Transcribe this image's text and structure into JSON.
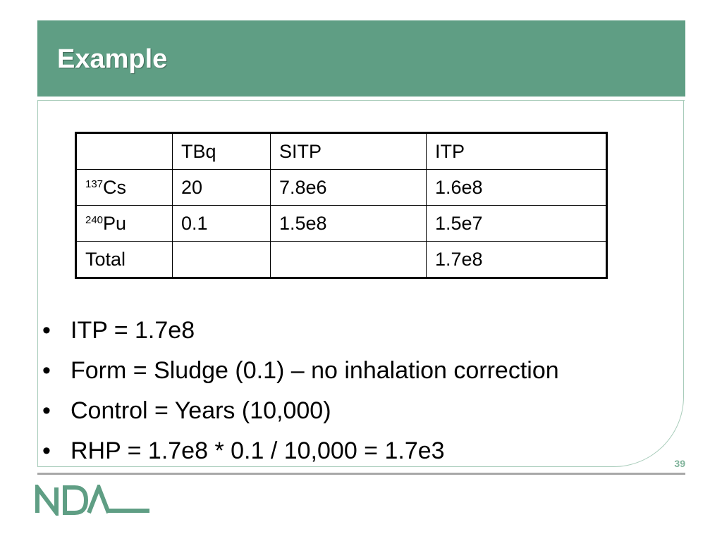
{
  "slide": {
    "title": "Example",
    "page_number": "39"
  },
  "table": {
    "header": [
      "",
      "TBq",
      "SITP",
      "ITP"
    ],
    "rows": [
      {
        "mass": "137",
        "element": "Cs",
        "label": "",
        "values": [
          "20",
          "7.8e6",
          "1.6e8"
        ]
      },
      {
        "mass": "240",
        "element": "Pu",
        "label": "",
        "values": [
          "0.1",
          "1.5e8",
          "1.5e7"
        ]
      },
      {
        "mass": "",
        "element": "",
        "label": "Total",
        "values": [
          "",
          "",
          "1.7e8"
        ]
      }
    ]
  },
  "bullets": [
    "ITP = 1.7e8",
    "Form = Sludge (0.1) – no inhalation correction",
    "Control = Years (10,000)",
    "RHP = 1.7e8 * 0.1 / 10,000 = 1.7e3"
  ],
  "logo": {
    "text": "NDA",
    "color": "#5f9e84"
  },
  "colors": {
    "title_bar": "#5f9e84",
    "frame_border": "#a8ccba",
    "footer_rule": "#a8a8a8"
  }
}
